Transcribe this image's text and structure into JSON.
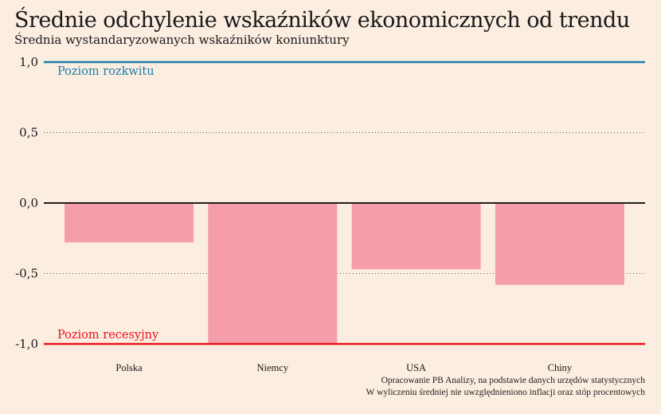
{
  "chart_data": {
    "type": "bar",
    "title": "Średnie odchylenie wskaźników ekonomicznych od trendu",
    "subtitle": "Średnia wystandaryzowanych wskaźników koniunktury",
    "categories": [
      "Polska",
      "Niemcy",
      "USA",
      "Chiny"
    ],
    "values": [
      -0.28,
      -1.0,
      -0.47,
      -0.58
    ],
    "ylim": [
      -1.0,
      1.0
    ],
    "yticks": [
      1.0,
      0.5,
      0.0,
      -0.5,
      -1.0
    ],
    "ytick_labels": [
      "1,0",
      "0,5",
      "0,0",
      "-0,5",
      "-1,0"
    ],
    "grid": "dotted horizontal",
    "reference_lines": [
      {
        "value": 1.0,
        "label": "Poziom rozkwitu",
        "color": "#1a7fa6"
      },
      {
        "value": -1.0,
        "label": "Poziom recesyjny",
        "color": "#e8121b"
      }
    ],
    "bar_color": "#f59ea9",
    "zero_line_color": "#000000"
  },
  "source": {
    "line1": "Opracowanie PB Analizy, na podstawie danych urzędów statystycznych",
    "line2": "W wyliczeniu średniej nie uwzględnieniono inflacji oraz stóp procentowych"
  }
}
